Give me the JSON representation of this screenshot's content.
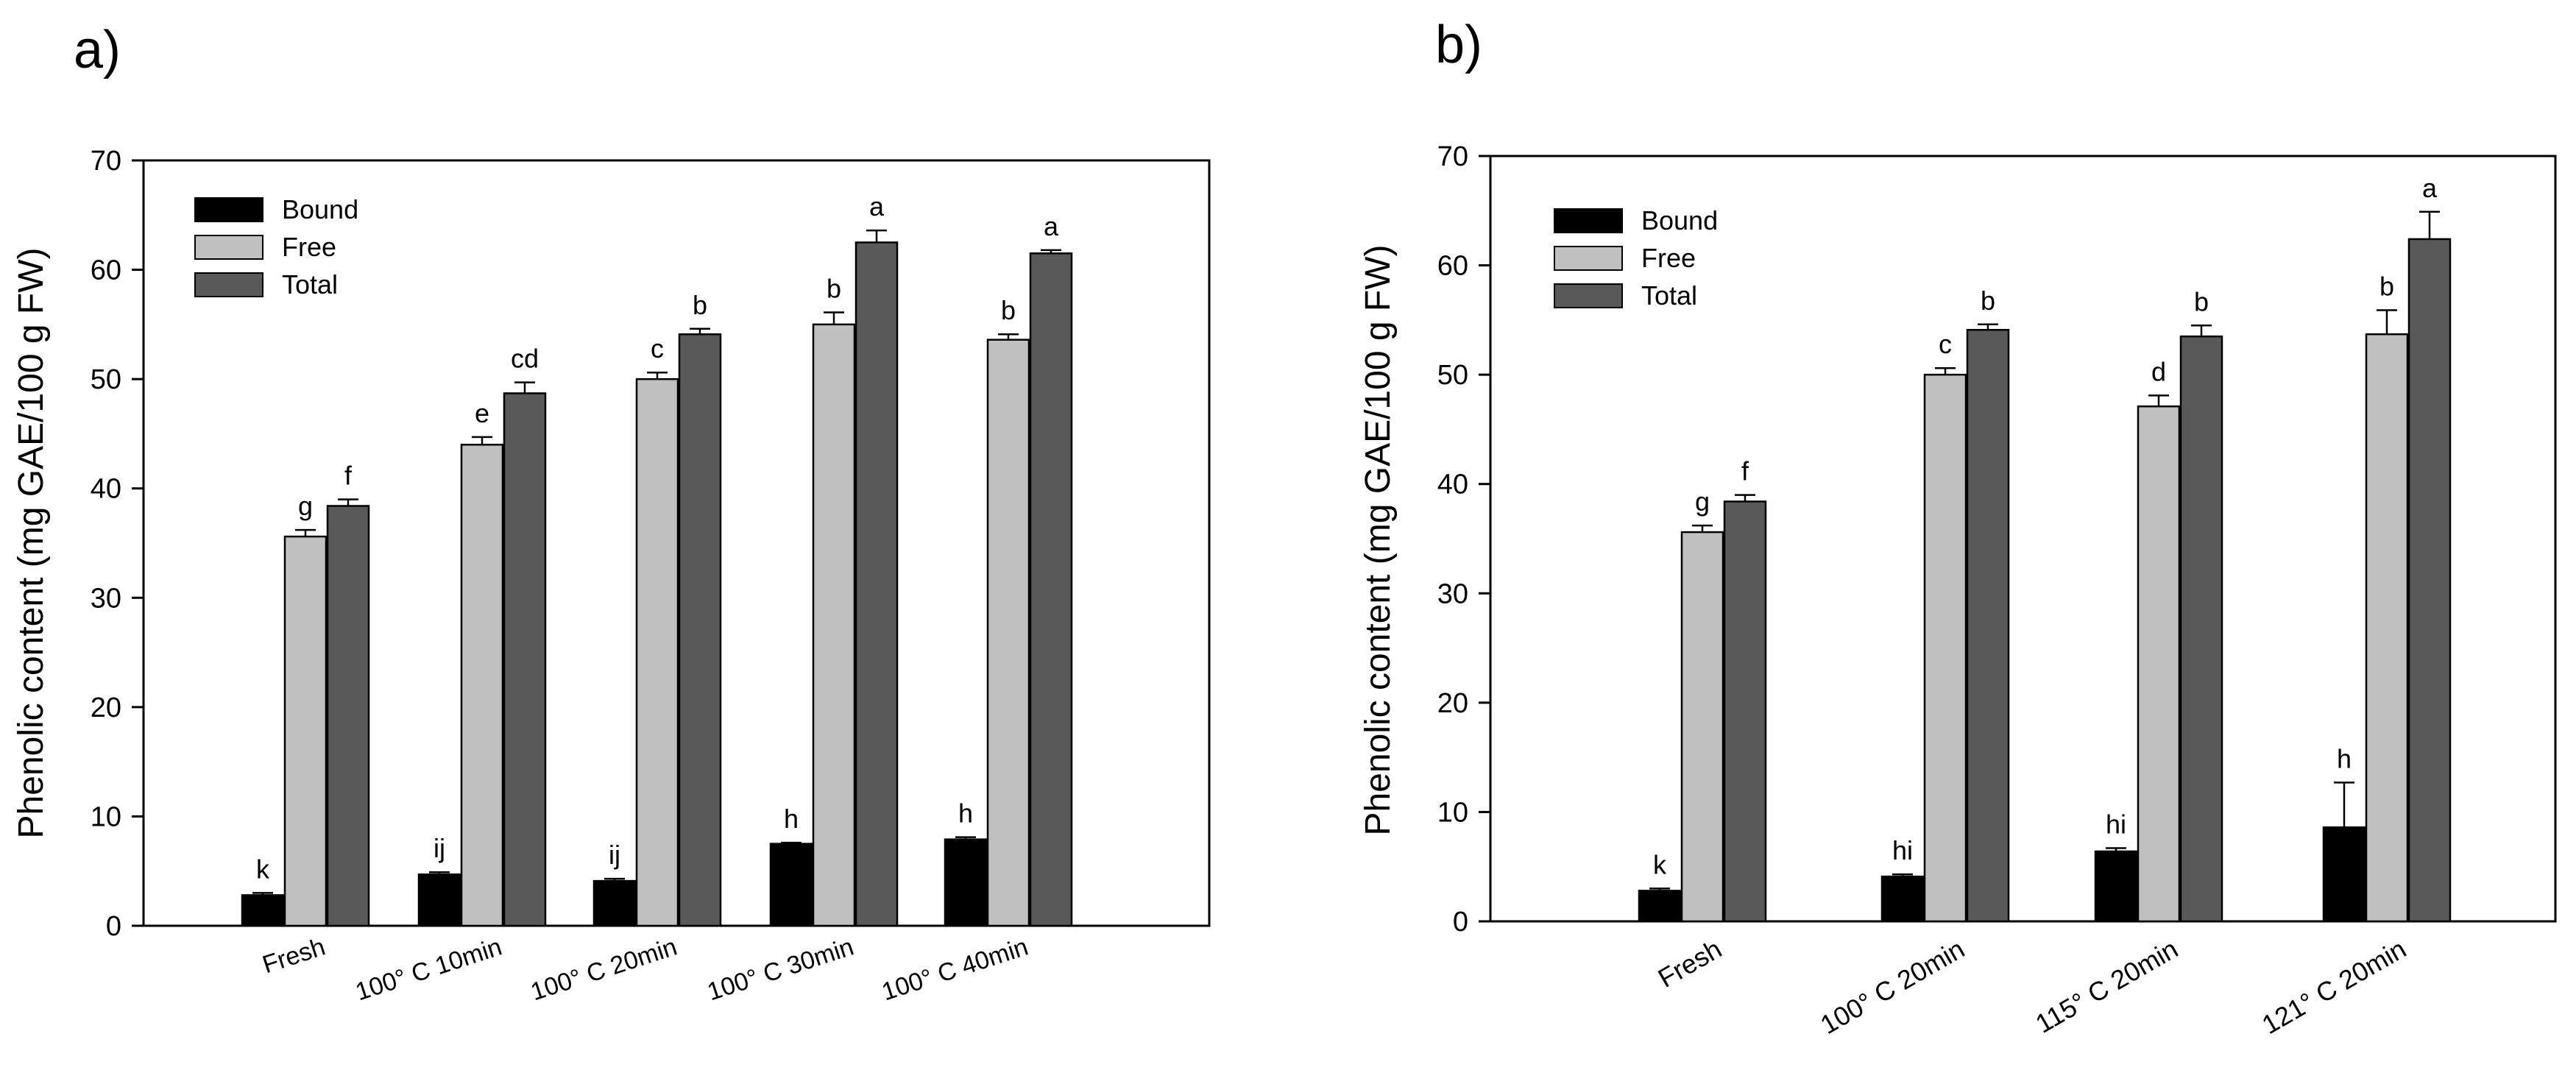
{
  "colors": {
    "bound": "#000000",
    "free": "#c0c0c0",
    "total": "#595959"
  },
  "chart_data": [
    {
      "type": "bar",
      "panel_label": "a)",
      "ylabel": "Phenolic content (mg GAE/100 g FW)",
      "xlabel": "",
      "ylim": [
        0,
        70
      ],
      "yticks": [
        "0",
        "10",
        "20",
        "30",
        "40",
        "50",
        "60",
        "70"
      ],
      "legend_position": "top-left",
      "categories": [
        "Fresh",
        "100° C 10min",
        "100° C 20min",
        "100° C 30min",
        "100° C 40min"
      ],
      "series": [
        {
          "name": "Bound",
          "values": [
            2.8,
            4.7,
            4.1,
            7.5,
            7.9
          ],
          "errors": [
            0.2,
            0.2,
            0.2,
            0.1,
            0.2
          ],
          "letters": [
            "k",
            "ij",
            "ij",
            "h",
            "h"
          ]
        },
        {
          "name": "Free",
          "values": [
            35.6,
            44.0,
            50.0,
            55.0,
            53.6
          ],
          "errors": [
            0.6,
            0.7,
            0.6,
            1.1,
            0.5
          ],
          "letters": [
            "g",
            "e",
            "c",
            "b",
            "b"
          ]
        },
        {
          "name": "Total",
          "values": [
            38.4,
            48.7,
            54.1,
            62.5,
            61.5
          ],
          "errors": [
            0.6,
            1.0,
            0.5,
            1.1,
            0.3
          ],
          "letters": [
            "f",
            "cd",
            "b",
            "a",
            "a"
          ]
        }
      ]
    },
    {
      "type": "bar",
      "panel_label": "b)",
      "ylabel": "Phenolic content (mg GAE/100 g FW)",
      "xlabel": "",
      "ylim": [
        0,
        70
      ],
      "yticks": [
        "0",
        "10",
        "20",
        "30",
        "40",
        "50",
        "60",
        "70"
      ],
      "legend_position": "top-left",
      "categories": [
        "Fresh",
        "100° C 20min",
        "115° C 20min",
        "121° C 20min"
      ],
      "series": [
        {
          "name": "Bound",
          "values": [
            2.8,
            4.1,
            6.4,
            8.6
          ],
          "errors": [
            0.2,
            0.2,
            0.3,
            4.1
          ],
          "letters": [
            "k",
            "hi",
            "hi",
            "h"
          ]
        },
        {
          "name": "Free",
          "values": [
            35.6,
            50.0,
            47.1,
            53.7
          ],
          "errors": [
            0.6,
            0.6,
            1.0,
            2.2
          ],
          "letters": [
            "g",
            "c",
            "d",
            "b"
          ]
        },
        {
          "name": "Total",
          "values": [
            38.4,
            54.1,
            53.5,
            62.4
          ],
          "errors": [
            0.6,
            0.5,
            1.0,
            2.5
          ],
          "letters": [
            "f",
            "b",
            "b",
            "a"
          ]
        }
      ]
    }
  ]
}
